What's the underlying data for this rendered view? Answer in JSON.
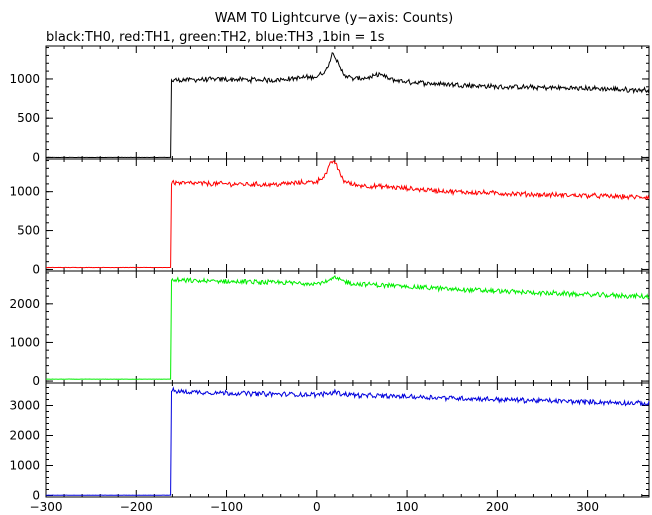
{
  "chart_data": {
    "type": "line",
    "title": "WAM T0 Lightcurve (y−axis: Counts)",
    "subtitle": "black:TH0, red:TH1, green:TH2, blue:TH3 ,1bin = 1s",
    "xlabel": "",
    "ylabel": "",
    "xlim": [
      -300,
      368
    ],
    "x_ticks": [
      "−300",
      "−200",
      "−100",
      "0",
      "100",
      "200",
      "300"
    ],
    "x_tick_values": [
      -300,
      -200,
      -100,
      0,
      100,
      200,
      300
    ],
    "grid": false,
    "panels": [
      {
        "name": "TH0",
        "color": "#000000",
        "ylim": [
          -20,
          1420
        ],
        "y_ticks": [
          0,
          500,
          1000
        ],
        "x": [
          -300,
          -162,
          -161,
          -150,
          -100,
          -50,
          0,
          10,
          15,
          18,
          20,
          25,
          30,
          40,
          60,
          70,
          80,
          100,
          150,
          200,
          250,
          300,
          350,
          368
        ],
        "y": [
          0,
          0,
          980,
          990,
          995,
          985,
          1030,
          1100,
          1250,
          1350,
          1300,
          1150,
          1060,
          1000,
          1020,
          1060,
          1000,
          960,
          930,
          900,
          890,
          880,
          860,
          860
        ]
      },
      {
        "name": "TH1",
        "color": "#ff0000",
        "ylim": [
          -20,
          1420
        ],
        "y_ticks": [
          0,
          500,
          1000
        ],
        "x": [
          -300,
          -162,
          -161,
          -150,
          -100,
          -50,
          0,
          10,
          15,
          18,
          20,
          25,
          30,
          40,
          60,
          80,
          100,
          150,
          200,
          250,
          300,
          350,
          368
        ],
        "y": [
          25,
          25,
          1120,
          1110,
          1100,
          1090,
          1130,
          1220,
          1350,
          1400,
          1380,
          1250,
          1140,
          1090,
          1070,
          1060,
          1040,
          1000,
          980,
          960,
          950,
          930,
          930
        ]
      },
      {
        "name": "TH2",
        "color": "#00ee00",
        "ylim": [
          -50,
          2850
        ],
        "y_ticks": [
          0,
          1000,
          2000
        ],
        "x": [
          -300,
          -162,
          -161,
          -150,
          -100,
          -50,
          0,
          15,
          20,
          25,
          40,
          100,
          150,
          200,
          250,
          300,
          350,
          368
        ],
        "y": [
          50,
          50,
          2620,
          2600,
          2580,
          2550,
          2530,
          2600,
          2680,
          2620,
          2520,
          2450,
          2380,
          2330,
          2280,
          2240,
          2200,
          2180
        ]
      },
      {
        "name": "TH3",
        "color": "#0000dd",
        "ylim": [
          -50,
          3750
        ],
        "y_ticks": [
          0,
          1000,
          2000,
          3000
        ],
        "x": [
          -300,
          -162,
          -161,
          -150,
          -100,
          -50,
          0,
          18,
          20,
          25,
          50,
          100,
          150,
          200,
          250,
          300,
          350,
          368
        ],
        "y": [
          10,
          10,
          3500,
          3460,
          3420,
          3380,
          3360,
          3420,
          3480,
          3400,
          3330,
          3300,
          3250,
          3200,
          3160,
          3120,
          3080,
          3060
        ]
      }
    ]
  }
}
